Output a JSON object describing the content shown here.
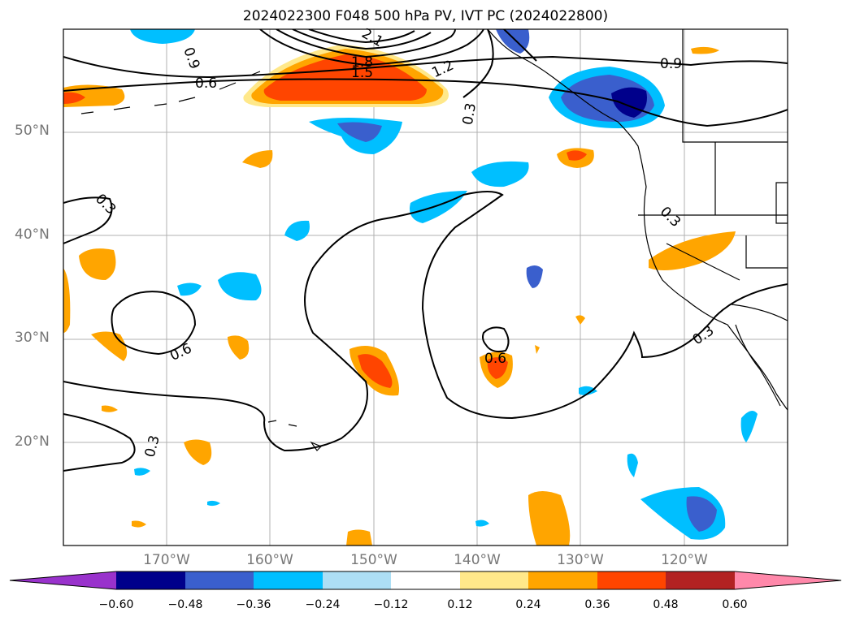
{
  "title": "2024022300 F048 500 hPa PV, IVT PC (2024022800)",
  "lat_labels": [
    "50°N",
    "40°N",
    "30°N",
    "20°N"
  ],
  "lon_labels": [
    "170°W",
    "160°W",
    "150°W",
    "140°W",
    "130°W",
    "120°W"
  ],
  "contour_labels": [
    "0.9",
    "2.1",
    "1.8",
    "1.5",
    "1.2",
    "0.6",
    "0.3",
    "0.9",
    "0.3",
    "0.3",
    "0.6",
    "0.6",
    "0.3",
    "0.3"
  ],
  "colorbar": {
    "ticks": [
      "−0.60",
      "−0.48",
      "−0.36",
      "−0.24",
      "−0.12",
      "0.12",
      "0.24",
      "0.36",
      "0.48",
      "0.60"
    ],
    "colors": [
      "#9932CC",
      "#00008B",
      "#3A5FCD",
      "#00BFFF",
      "#ADDFF5",
      "#FFFFFF",
      "#FFE88A",
      "#FFA500",
      "#FF4500",
      "#B22222",
      "#FF88AA"
    ]
  }
}
